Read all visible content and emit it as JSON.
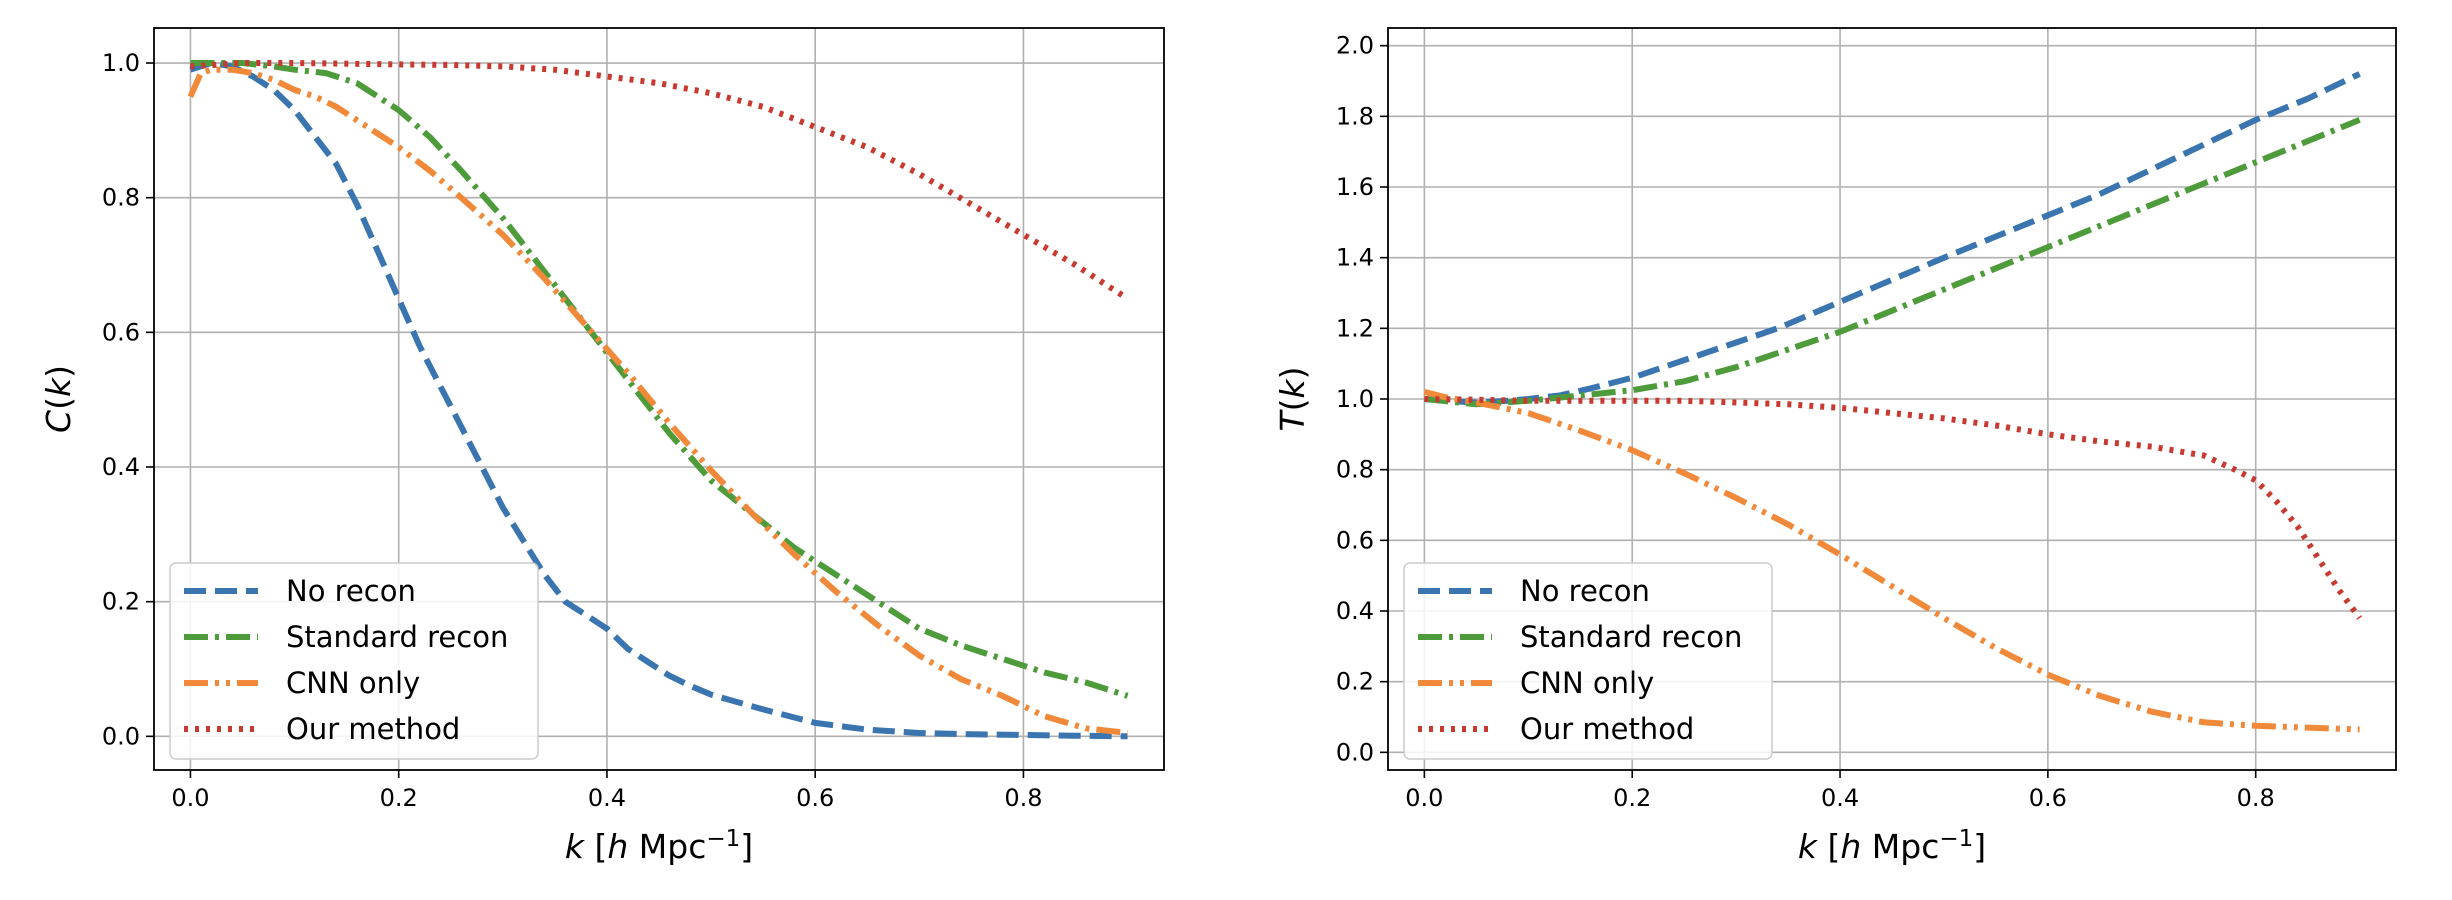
{
  "chart_data": [
    {
      "type": "line",
      "id": "left",
      "xlabel": "k [h Mpc⁻¹]",
      "xlabel_parts": {
        "var": "k",
        "open": " [",
        "h": "h",
        "unit": " Mpc",
        "sup": "−1",
        "close": "]"
      },
      "ylabel": "C(k)",
      "ylabel_parts": {
        "f": "C",
        "open": "(",
        "var": "k",
        "close": ")"
      },
      "xlim": [
        -0.035,
        0.935
      ],
      "ylim": [
        -0.05,
        1.052
      ],
      "xticks": [
        0.0,
        0.2,
        0.4,
        0.6,
        0.8
      ],
      "xtick_labels": [
        "0.0",
        "0.2",
        "0.4",
        "0.6",
        "0.8"
      ],
      "yticks": [
        0.0,
        0.2,
        0.4,
        0.6,
        0.8,
        1.0
      ],
      "ytick_labels": [
        "0.0",
        "0.2",
        "0.4",
        "0.6",
        "0.8",
        "1.0"
      ],
      "grid": true,
      "legend_position": "lower-left",
      "series": [
        {
          "name": "No recon",
          "color": "#3a75b0",
          "style": "dashed",
          "x": [
            0.0,
            0.02,
            0.04,
            0.06,
            0.08,
            0.1,
            0.12,
            0.14,
            0.16,
            0.18,
            0.2,
            0.22,
            0.24,
            0.26,
            0.28,
            0.3,
            0.32,
            0.34,
            0.36,
            0.38,
            0.4,
            0.42,
            0.44,
            0.46,
            0.48,
            0.5,
            0.55,
            0.6,
            0.65,
            0.7,
            0.75,
            0.8,
            0.85,
            0.9
          ],
          "y": [
            0.99,
            1.0,
            0.995,
            0.98,
            0.96,
            0.93,
            0.89,
            0.85,
            0.79,
            0.72,
            0.65,
            0.58,
            0.52,
            0.46,
            0.4,
            0.34,
            0.29,
            0.24,
            0.2,
            0.18,
            0.16,
            0.13,
            0.11,
            0.09,
            0.075,
            0.062,
            0.04,
            0.02,
            0.01,
            0.005,
            0.003,
            0.002,
            0.001,
            0.0
          ]
        },
        {
          "name": "Standard recon",
          "color": "#4d9b3a",
          "style": "dashdot",
          "x": [
            0.0,
            0.02,
            0.05,
            0.08,
            0.1,
            0.13,
            0.16,
            0.18,
            0.2,
            0.23,
            0.26,
            0.3,
            0.34,
            0.38,
            0.42,
            0.46,
            0.5,
            0.54,
            0.58,
            0.62,
            0.66,
            0.7,
            0.74,
            0.78,
            0.82,
            0.86,
            0.9
          ],
          "y": [
            1.0,
            1.0,
            1.0,
            0.995,
            0.99,
            0.985,
            0.97,
            0.95,
            0.93,
            0.89,
            0.84,
            0.77,
            0.69,
            0.61,
            0.53,
            0.45,
            0.38,
            0.33,
            0.28,
            0.24,
            0.2,
            0.16,
            0.135,
            0.115,
            0.095,
            0.08,
            0.06
          ]
        },
        {
          "name": "CNN only",
          "color": "#f08a3a",
          "style": "dashdotdot",
          "x": [
            0.0,
            0.01,
            0.02,
            0.04,
            0.06,
            0.08,
            0.1,
            0.12,
            0.14,
            0.16,
            0.18,
            0.2,
            0.23,
            0.26,
            0.3,
            0.34,
            0.38,
            0.42,
            0.46,
            0.5,
            0.54,
            0.58,
            0.62,
            0.66,
            0.7,
            0.74,
            0.78,
            0.82,
            0.86,
            0.9
          ],
          "y": [
            0.95,
            0.985,
            0.99,
            0.99,
            0.985,
            0.975,
            0.96,
            0.95,
            0.935,
            0.915,
            0.895,
            0.875,
            0.84,
            0.8,
            0.745,
            0.68,
            0.61,
            0.54,
            0.465,
            0.395,
            0.33,
            0.27,
            0.215,
            0.165,
            0.12,
            0.085,
            0.06,
            0.03,
            0.012,
            0.005
          ]
        },
        {
          "name": "Our method",
          "color": "#c83a30",
          "style": "dotted",
          "x": [
            0.0,
            0.05,
            0.1,
            0.15,
            0.2,
            0.25,
            0.3,
            0.35,
            0.4,
            0.45,
            0.5,
            0.55,
            0.6,
            0.65,
            0.7,
            0.75,
            0.8,
            0.85,
            0.9
          ],
          "y": [
            0.995,
            1.0,
            1.0,
            0.999,
            0.998,
            0.997,
            0.995,
            0.99,
            0.98,
            0.97,
            0.955,
            0.935,
            0.905,
            0.875,
            0.835,
            0.79,
            0.745,
            0.7,
            0.65
          ]
        }
      ]
    },
    {
      "type": "line",
      "id": "right",
      "xlabel": "k [h Mpc⁻¹]",
      "xlabel_parts": {
        "var": "k",
        "open": " [",
        "h": "h",
        "unit": " Mpc",
        "sup": "−1",
        "close": "]"
      },
      "ylabel": "T(k)",
      "ylabel_parts": {
        "f": "T",
        "open": "(",
        "var": "k",
        "close": ")"
      },
      "xlim": [
        -0.035,
        0.935
      ],
      "ylim": [
        -0.05,
        2.05
      ],
      "xticks": [
        0.0,
        0.2,
        0.4,
        0.6,
        0.8
      ],
      "xtick_labels": [
        "0.0",
        "0.2",
        "0.4",
        "0.6",
        "0.8"
      ],
      "yticks": [
        0.0,
        0.2,
        0.4,
        0.6,
        0.8,
        1.0,
        1.2,
        1.4,
        1.6,
        1.8,
        2.0
      ],
      "ytick_labels": [
        "0.0",
        "0.2",
        "0.4",
        "0.6",
        "0.8",
        "1.0",
        "1.2",
        "1.4",
        "1.6",
        "1.8",
        "2.0"
      ],
      "grid": true,
      "legend_position": "lower-left",
      "series": [
        {
          "name": "No recon",
          "color": "#3a75b0",
          "style": "dashed",
          "x": [
            0.0,
            0.02,
            0.05,
            0.08,
            0.1,
            0.13,
            0.16,
            0.18,
            0.2,
            0.23,
            0.26,
            0.3,
            0.34,
            0.38,
            0.42,
            0.46,
            0.5,
            0.55,
            0.6,
            0.65,
            0.7,
            0.75,
            0.8,
            0.85,
            0.9
          ],
          "y": [
            1.0,
            0.995,
            0.99,
            0.995,
            1.0,
            1.01,
            1.03,
            1.045,
            1.06,
            1.09,
            1.12,
            1.16,
            1.2,
            1.25,
            1.3,
            1.35,
            1.4,
            1.46,
            1.52,
            1.58,
            1.65,
            1.72,
            1.79,
            1.85,
            1.92
          ]
        },
        {
          "name": "Standard recon",
          "color": "#4d9b3a",
          "style": "dashdot",
          "x": [
            0.0,
            0.05,
            0.1,
            0.15,
            0.2,
            0.25,
            0.3,
            0.35,
            0.4,
            0.45,
            0.5,
            0.55,
            0.6,
            0.65,
            0.7,
            0.75,
            0.8,
            0.85,
            0.9
          ],
          "y": [
            1.0,
            0.985,
            0.995,
            1.01,
            1.025,
            1.05,
            1.09,
            1.14,
            1.19,
            1.25,
            1.31,
            1.37,
            1.43,
            1.49,
            1.55,
            1.61,
            1.67,
            1.73,
            1.79
          ]
        },
        {
          "name": "CNN only",
          "color": "#f08a3a",
          "style": "dashdotdot",
          "x": [
            0.0,
            0.02,
            0.05,
            0.1,
            0.15,
            0.2,
            0.25,
            0.3,
            0.35,
            0.4,
            0.45,
            0.5,
            0.55,
            0.6,
            0.65,
            0.7,
            0.75,
            0.8,
            0.85,
            0.9
          ],
          "y": [
            1.02,
            1.005,
            0.99,
            0.96,
            0.91,
            0.855,
            0.79,
            0.72,
            0.645,
            0.56,
            0.47,
            0.38,
            0.295,
            0.22,
            0.16,
            0.115,
            0.085,
            0.075,
            0.07,
            0.065
          ]
        },
        {
          "name": "Our method",
          "color": "#c83a30",
          "style": "dotted",
          "x": [
            0.0,
            0.05,
            0.1,
            0.15,
            0.2,
            0.25,
            0.3,
            0.35,
            0.4,
            0.45,
            0.5,
            0.55,
            0.6,
            0.65,
            0.7,
            0.75,
            0.78,
            0.8,
            0.82,
            0.84,
            0.86,
            0.88,
            0.9
          ],
          "y": [
            1.0,
            0.998,
            0.995,
            0.995,
            0.995,
            0.995,
            0.99,
            0.985,
            0.975,
            0.96,
            0.945,
            0.925,
            0.9,
            0.88,
            0.865,
            0.84,
            0.8,
            0.77,
            0.71,
            0.64,
            0.55,
            0.46,
            0.38
          ]
        }
      ]
    }
  ]
}
